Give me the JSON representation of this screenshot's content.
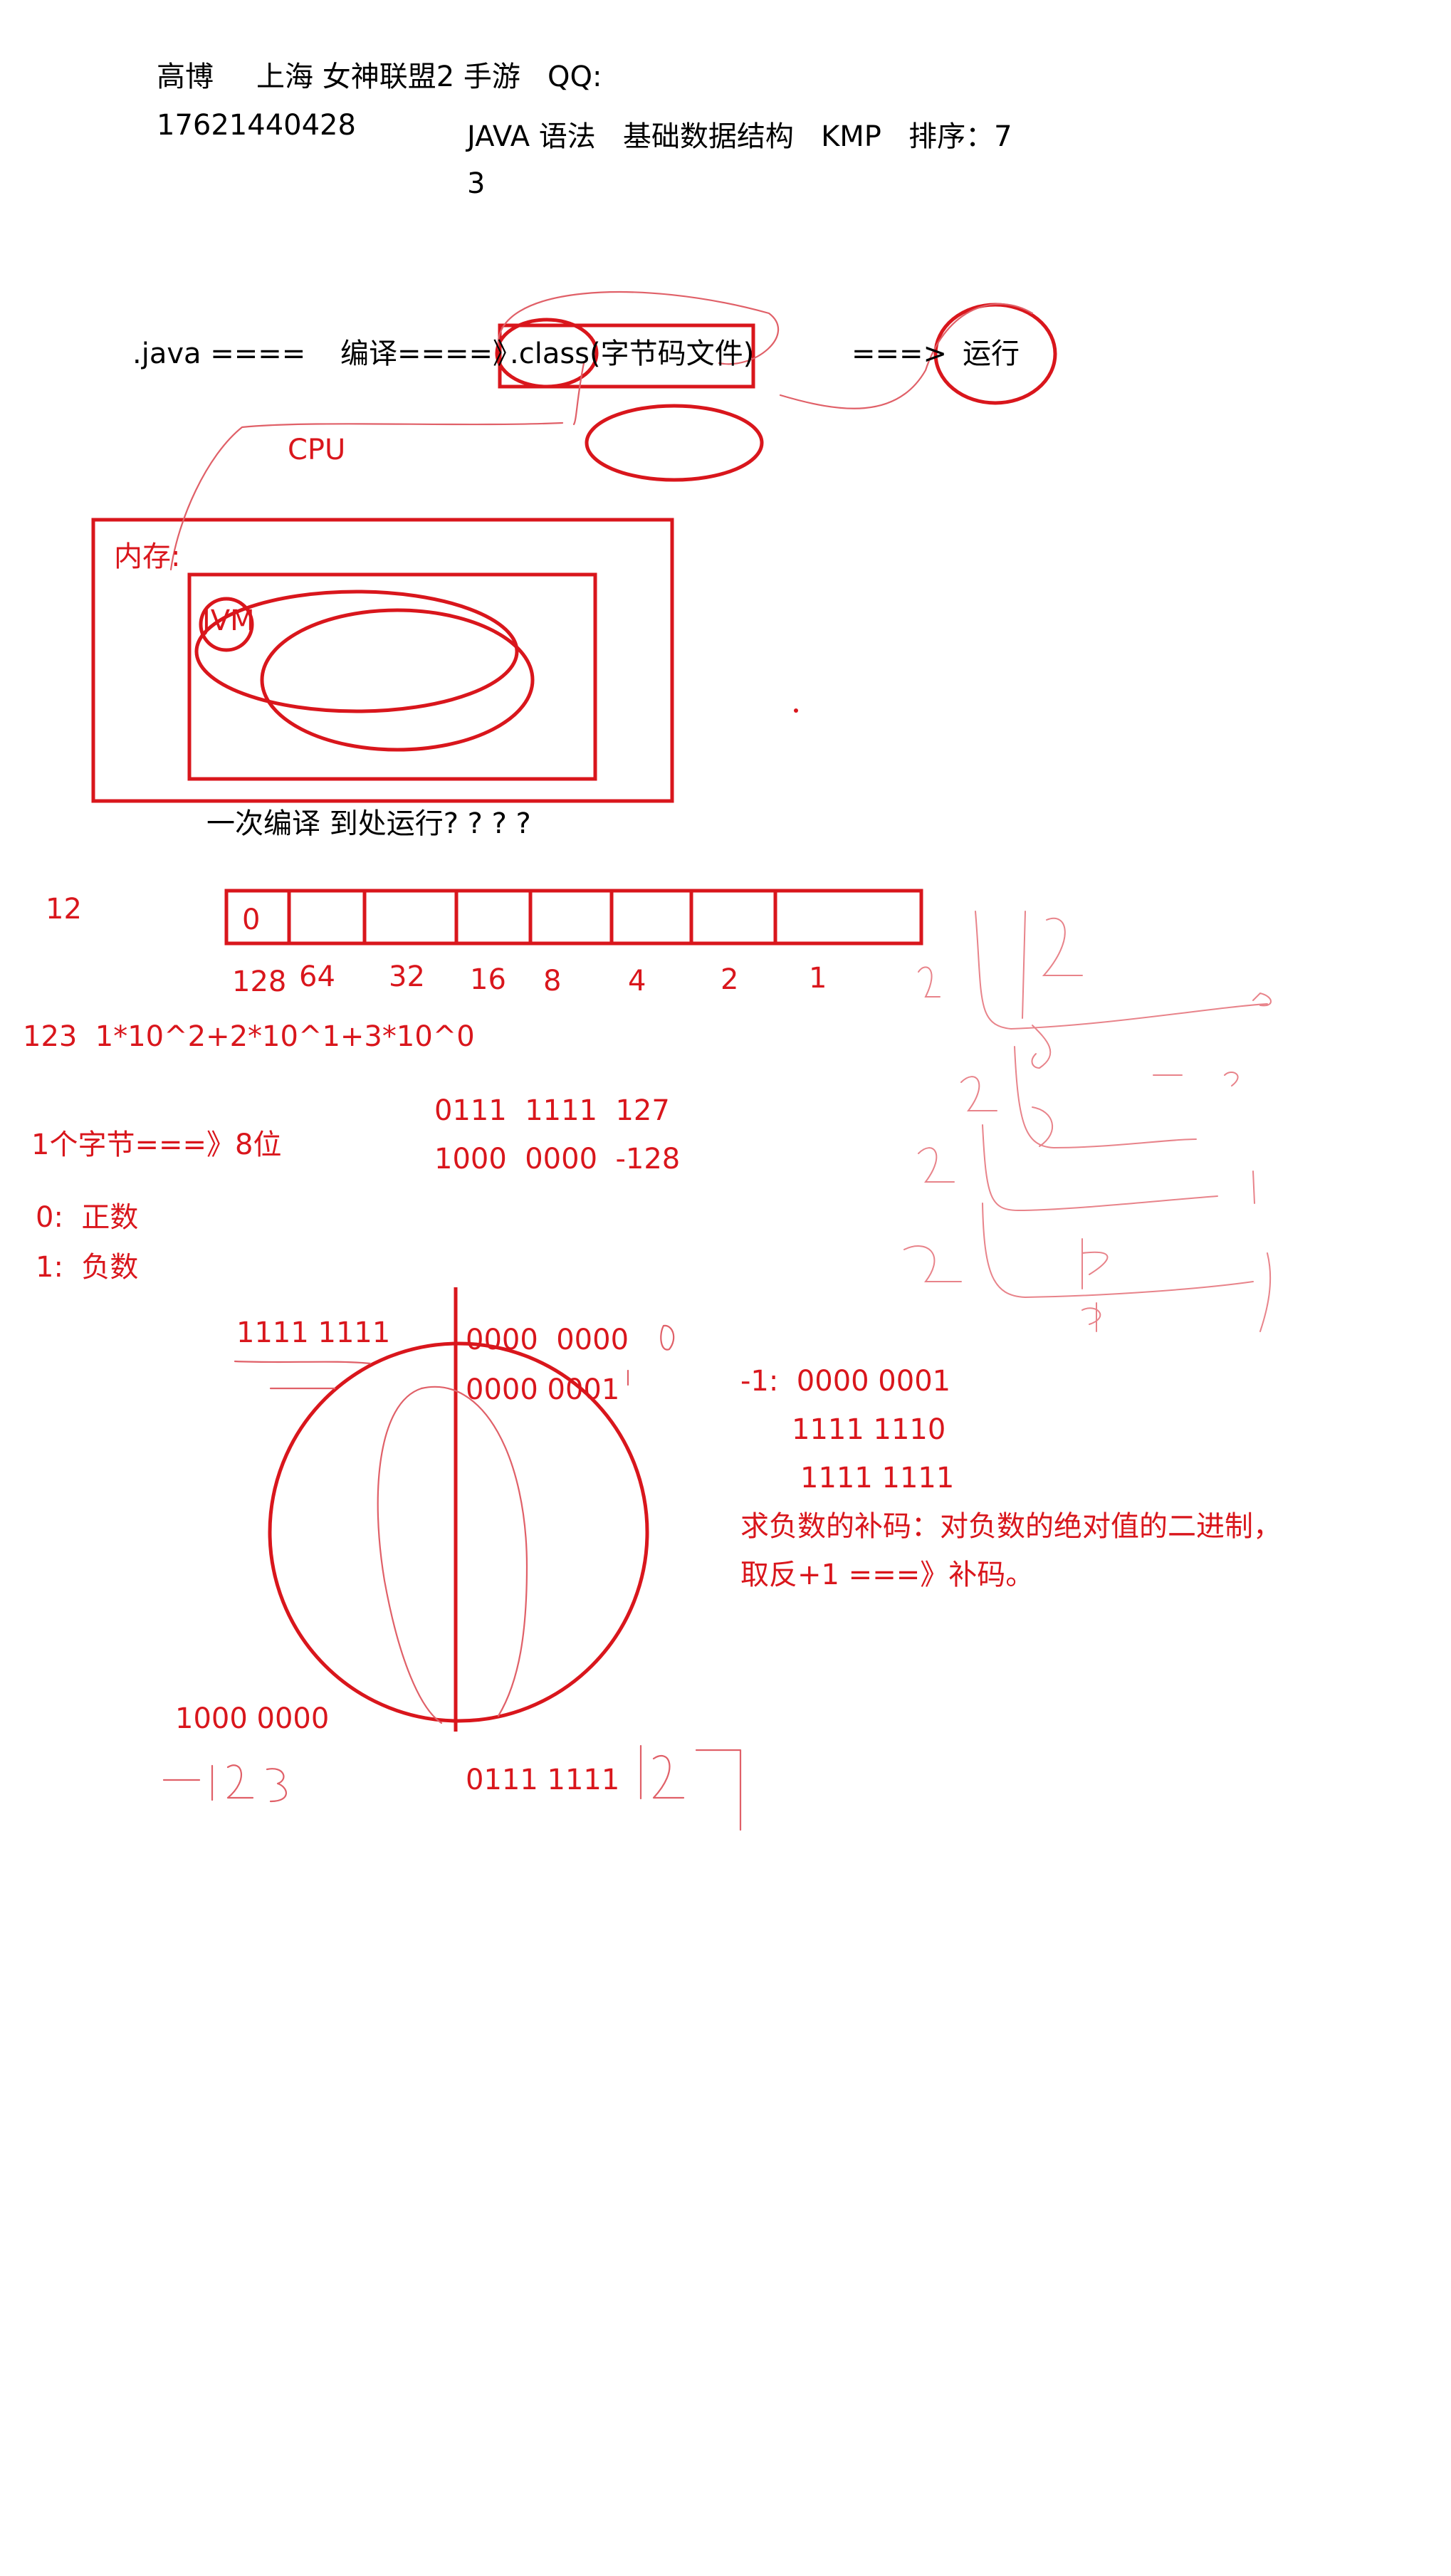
{
  "header": {
    "name": "高博",
    "info": "上海 女神联盟2 手游   QQ:",
    "qq_number": "17621440428",
    "topics": "JAVA 语法   基础数据结构   KMP   排序：7",
    "topics_cont": "3"
  },
  "flow": {
    "java": ".java ====",
    "compile": "编译====》",
    "class_file": ".class(字节码文件)",
    "arrow": "===>",
    "run": "运行",
    "cpu": "CPU"
  },
  "memory": {
    "label": "内存:",
    "jvm": "JVM",
    "caption": "一次编译 到处运行? ? ? ?"
  },
  "byte_row": {
    "number": "12",
    "first_cell": "0",
    "weights": [
      "128",
      "64",
      "32",
      "16",
      "8",
      "4",
      "2",
      "1"
    ]
  },
  "notes": {
    "decimal_expansion": "123  1*10^2+2*10^1+3*10^0",
    "max_value": "0111  1111  127",
    "min_value": "1000  0000  -128",
    "byte_bits": "1个字节===》8位",
    "sign_positive": "0:  正数",
    "sign_negative": "1:  负数"
  },
  "circle": {
    "top_left": "1111 1111",
    "top_right_1": "0000  0000",
    "top_right_2": "0000 0001",
    "bottom_left": "1000 0000",
    "bottom_right": "0111 1111"
  },
  "complement": {
    "line1": "-1:  0000 0001",
    "line2": "1111 1110",
    "line3": "1111 1111",
    "rule1": "求负数的补码：对负数的绝对值的二进制，",
    "rule2": "取反+1 ===》补码。"
  },
  "colors": {
    "ink_red": "#d9161c",
    "handwriting": "#e06068",
    "text_black": "#000000"
  }
}
